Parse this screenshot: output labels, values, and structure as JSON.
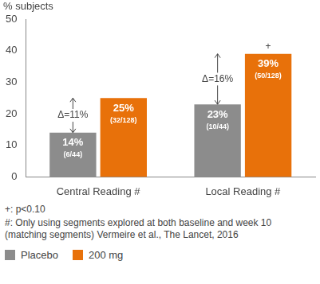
{
  "chart_data": {
    "type": "bar",
    "y_label": "% subjects",
    "categories": [
      "Central Reading #",
      "Local Reading #"
    ],
    "series": [
      {
        "name": "Placebo",
        "color": "#8c8c8c",
        "values": [
          14,
          23
        ],
        "value_labels": [
          "14%",
          "23%"
        ],
        "count_labels": [
          "(6/44)",
          "(10/44)"
        ]
      },
      {
        "name": "200 mg",
        "color": "#e8710a",
        "values": [
          25,
          39
        ],
        "value_labels": [
          "25%",
          "39%"
        ],
        "count_labels": [
          "(32/128)",
          "(50/128)"
        ]
      }
    ],
    "ylim": [
      0,
      50
    ],
    "yticks": [
      0,
      10,
      20,
      30,
      40,
      50
    ],
    "grid": false,
    "legend": "bottom-left",
    "data_labels": true,
    "annotations": [
      {
        "text": "Δ=11%",
        "category": "Central Reading #"
      },
      {
        "text": "Δ=16%",
        "category": "Local Reading #"
      },
      {
        "text": "+",
        "category": "Local Reading #",
        "series": "200 mg"
      }
    ],
    "footnotes": [
      "+: p<0.10",
      "#: Only using segments explored at both baseline and week 10 (matching segments) Vermeire et al., The Lancet, 2016"
    ]
  }
}
